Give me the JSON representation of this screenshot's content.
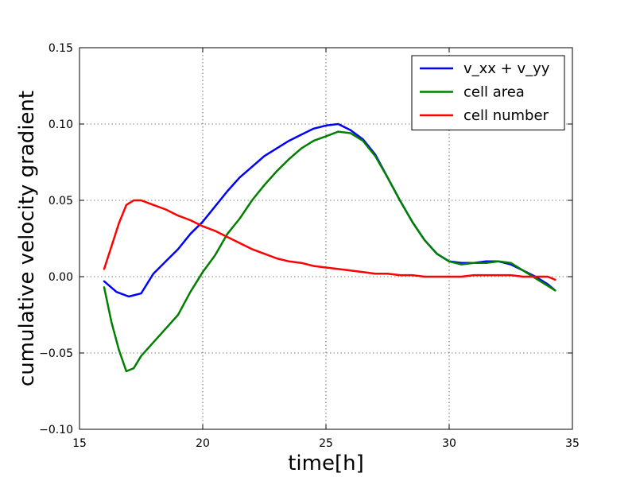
{
  "chart_data": {
    "type": "line",
    "title": "",
    "xlabel": "time[h]",
    "ylabel": "cumulative velocity gradient",
    "xlim": [
      15,
      35
    ],
    "ylim": [
      -0.1,
      0.15
    ],
    "xticks": [
      "15",
      "20",
      "25",
      "30",
      "35"
    ],
    "xtick_values": [
      15,
      20,
      25,
      30,
      35
    ],
    "yticks": [
      "−0.10",
      "−0.05",
      "0.00",
      "0.05",
      "0.10",
      "0.15"
    ],
    "ytick_values": [
      -0.1,
      -0.05,
      0.0,
      0.05,
      0.1,
      0.15
    ],
    "grid": true,
    "legend_position": "top-right",
    "series": [
      {
        "name": "v_xx + v_yy",
        "color": "#0000ff",
        "x": [
          16,
          16.5,
          17,
          17.5,
          18,
          18.5,
          19,
          19.5,
          20,
          20.5,
          21,
          21.5,
          22,
          22.5,
          23,
          23.5,
          24,
          24.5,
          25,
          25.5,
          26,
          26.5,
          27,
          27.5,
          28,
          28.5,
          29,
          29.5,
          30,
          30.5,
          31,
          31.5,
          32,
          32.5,
          33,
          33.5,
          34,
          34.3
        ],
        "y": [
          -0.003,
          -0.01,
          -0.013,
          -0.011,
          0.002,
          0.01,
          0.018,
          0.028,
          0.036,
          0.046,
          0.056,
          0.065,
          0.072,
          0.079,
          0.084,
          0.089,
          0.093,
          0.097,
          0.099,
          0.1,
          0.096,
          0.09,
          0.08,
          0.065,
          0.05,
          0.036,
          0.024,
          0.015,
          0.01,
          0.009,
          0.009,
          0.01,
          0.01,
          0.008,
          0.004,
          0.0,
          -0.005,
          -0.009
        ]
      },
      {
        "name": "cell area",
        "color": "#008000",
        "x": [
          16,
          16.3,
          16.6,
          16.9,
          17.2,
          17.5,
          18,
          18.5,
          19,
          19.5,
          20,
          20.5,
          21,
          21.5,
          22,
          22.5,
          23,
          23.5,
          24,
          24.5,
          25,
          25.5,
          26,
          26.5,
          27,
          27.5,
          28,
          28.5,
          29,
          29.5,
          30,
          30.5,
          31,
          31.5,
          32,
          32.5,
          33,
          33.5,
          34,
          34.3
        ],
        "y": [
          -0.007,
          -0.03,
          -0.048,
          -0.062,
          -0.06,
          -0.052,
          -0.043,
          -0.034,
          -0.025,
          -0.01,
          0.003,
          0.014,
          0.028,
          0.038,
          0.05,
          0.06,
          0.069,
          0.077,
          0.084,
          0.089,
          0.092,
          0.095,
          0.094,
          0.089,
          0.079,
          0.065,
          0.05,
          0.036,
          0.024,
          0.015,
          0.01,
          0.008,
          0.009,
          0.009,
          0.01,
          0.009,
          0.004,
          -0.001,
          -0.006,
          -0.009
        ]
      },
      {
        "name": "cell number",
        "color": "#ff0000",
        "x": [
          16,
          16.3,
          16.6,
          16.9,
          17.2,
          17.5,
          18,
          18.5,
          19,
          19.5,
          20,
          20.5,
          21,
          21.5,
          22,
          22.5,
          23,
          23.5,
          24,
          24.5,
          25,
          25.5,
          26,
          26.5,
          27,
          27.5,
          28,
          28.5,
          29,
          29.5,
          30,
          30.5,
          31,
          31.5,
          32,
          32.5,
          33,
          33.5,
          34,
          34.3
        ],
        "y": [
          0.005,
          0.02,
          0.035,
          0.047,
          0.05,
          0.05,
          0.047,
          0.044,
          0.04,
          0.037,
          0.033,
          0.03,
          0.026,
          0.022,
          0.018,
          0.015,
          0.012,
          0.01,
          0.009,
          0.007,
          0.006,
          0.005,
          0.004,
          0.003,
          0.002,
          0.002,
          0.001,
          0.001,
          0.0,
          0.0,
          0.0,
          0.0,
          0.001,
          0.001,
          0.001,
          0.001,
          0.0,
          0.0,
          0.0,
          -0.002
        ]
      }
    ]
  }
}
